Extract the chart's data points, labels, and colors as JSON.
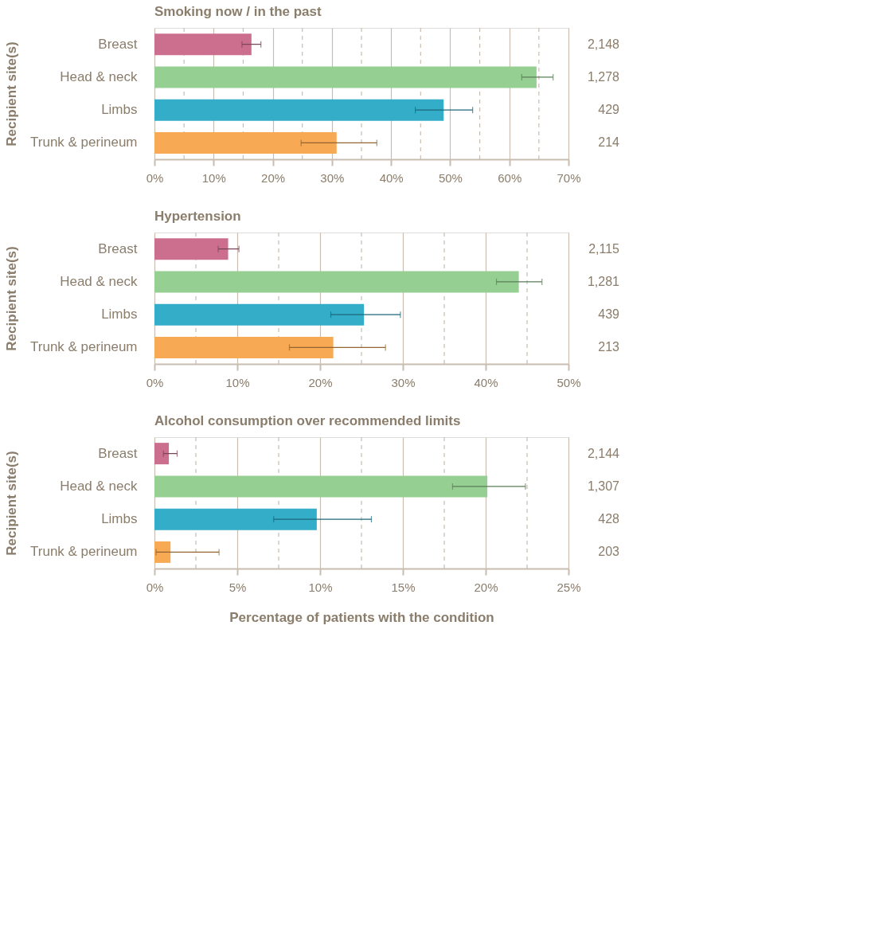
{
  "chart_data": [
    {
      "type": "bar",
      "orientation": "horizontal",
      "title": "Smoking now / in the past",
      "ylabel": "Recipient site(s)",
      "categories": [
        "Breast",
        "Head & neck",
        "Limbs",
        "Trunk & perineum"
      ],
      "values": [
        16.4,
        64.6,
        48.9,
        30.8
      ],
      "colors": [
        "#cc6f8e",
        "#96cf92",
        "#33adc8",
        "#f7a953"
      ],
      "errors": [
        [
          14.8,
          18.0
        ],
        [
          62.1,
          67.4
        ],
        [
          44.1,
          53.8
        ],
        [
          24.8,
          37.6
        ]
      ],
      "xlim": [
        0,
        70
      ],
      "xticks": [
        {
          "value": 0,
          "label": "0%"
        },
        {
          "value": 5,
          "label": null
        },
        {
          "value": 10,
          "label": "10%"
        },
        {
          "value": 15,
          "label": null
        },
        {
          "value": 20,
          "label": "20%"
        },
        {
          "value": 25,
          "label": null
        },
        {
          "value": 30,
          "label": "30%"
        },
        {
          "value": 35,
          "label": null
        },
        {
          "value": 40,
          "label": "40%"
        },
        {
          "value": 45,
          "label": null
        },
        {
          "value": 50,
          "label": "50%"
        },
        {
          "value": 55,
          "label": null
        },
        {
          "value": 60,
          "label": "60%"
        },
        {
          "value": 65,
          "label": null
        },
        {
          "value": 70,
          "label": "70%"
        }
      ],
      "grid": "x",
      "annotations": [
        "2,148",
        "1,278",
        "429",
        "214"
      ]
    },
    {
      "type": "bar",
      "orientation": "horizontal",
      "title": "Hypertension",
      "ylabel": "Recipient site(s)",
      "categories": [
        "Breast",
        "Head & neck",
        "Limbs",
        "Trunk & perineum"
      ],
      "values": [
        8.9,
        44.0,
        25.3,
        21.6
      ],
      "colors": [
        "#cc6f8e",
        "#96cf92",
        "#33adc8",
        "#f7a953"
      ],
      "errors": [
        [
          7.7,
          10.2
        ],
        [
          41.3,
          46.8
        ],
        [
          21.3,
          29.7
        ],
        [
          16.3,
          27.9
        ]
      ],
      "xlim": [
        0,
        50
      ],
      "xticks": [
        {
          "value": 0,
          "label": "0%"
        },
        {
          "value": 5,
          "label": null
        },
        {
          "value": 10,
          "label": "10%"
        },
        {
          "value": 15,
          "label": null
        },
        {
          "value": 20,
          "label": "20%"
        },
        {
          "value": 25,
          "label": null
        },
        {
          "value": 30,
          "label": "30%"
        },
        {
          "value": 35,
          "label": null
        },
        {
          "value": 40,
          "label": "40%"
        },
        {
          "value": 45,
          "label": null
        },
        {
          "value": 50,
          "label": "50%"
        }
      ],
      "grid": "x",
      "annotations": [
        "2,115",
        "1,281",
        "439",
        "213"
      ]
    },
    {
      "type": "bar",
      "orientation": "horizontal",
      "title": "Alcohol consumption over recommended limits",
      "ylabel": "Recipient site(s)",
      "xlabel": "Percentage of patients with the condition",
      "categories": [
        "Breast",
        "Head & neck",
        "Limbs",
        "Trunk & perineum"
      ],
      "values": [
        0.87,
        20.1,
        9.8,
        0.97
      ],
      "colors": [
        "#cc6f8e",
        "#96cf92",
        "#33adc8",
        "#f7a953"
      ],
      "errors": [
        [
          0.54,
          1.37
        ],
        [
          18.0,
          22.4
        ],
        [
          7.2,
          13.1
        ],
        [
          0.1,
          3.9
        ]
      ],
      "xlim": [
        0,
        25
      ],
      "xticks": [
        {
          "value": 0,
          "label": "0%"
        },
        {
          "value": 2.5,
          "label": null
        },
        {
          "value": 5,
          "label": "5%"
        },
        {
          "value": 7.5,
          "label": null
        },
        {
          "value": 10,
          "label": "10%"
        },
        {
          "value": 12.5,
          "label": null
        },
        {
          "value": 15,
          "label": "15%"
        },
        {
          "value": 17.5,
          "label": null
        },
        {
          "value": 20,
          "label": "20%"
        },
        {
          "value": 22.5,
          "label": null
        },
        {
          "value": 25,
          "label": "25%"
        }
      ],
      "grid": "x",
      "annotations": [
        "2,144",
        "1,307",
        "428",
        "203"
      ]
    }
  ]
}
